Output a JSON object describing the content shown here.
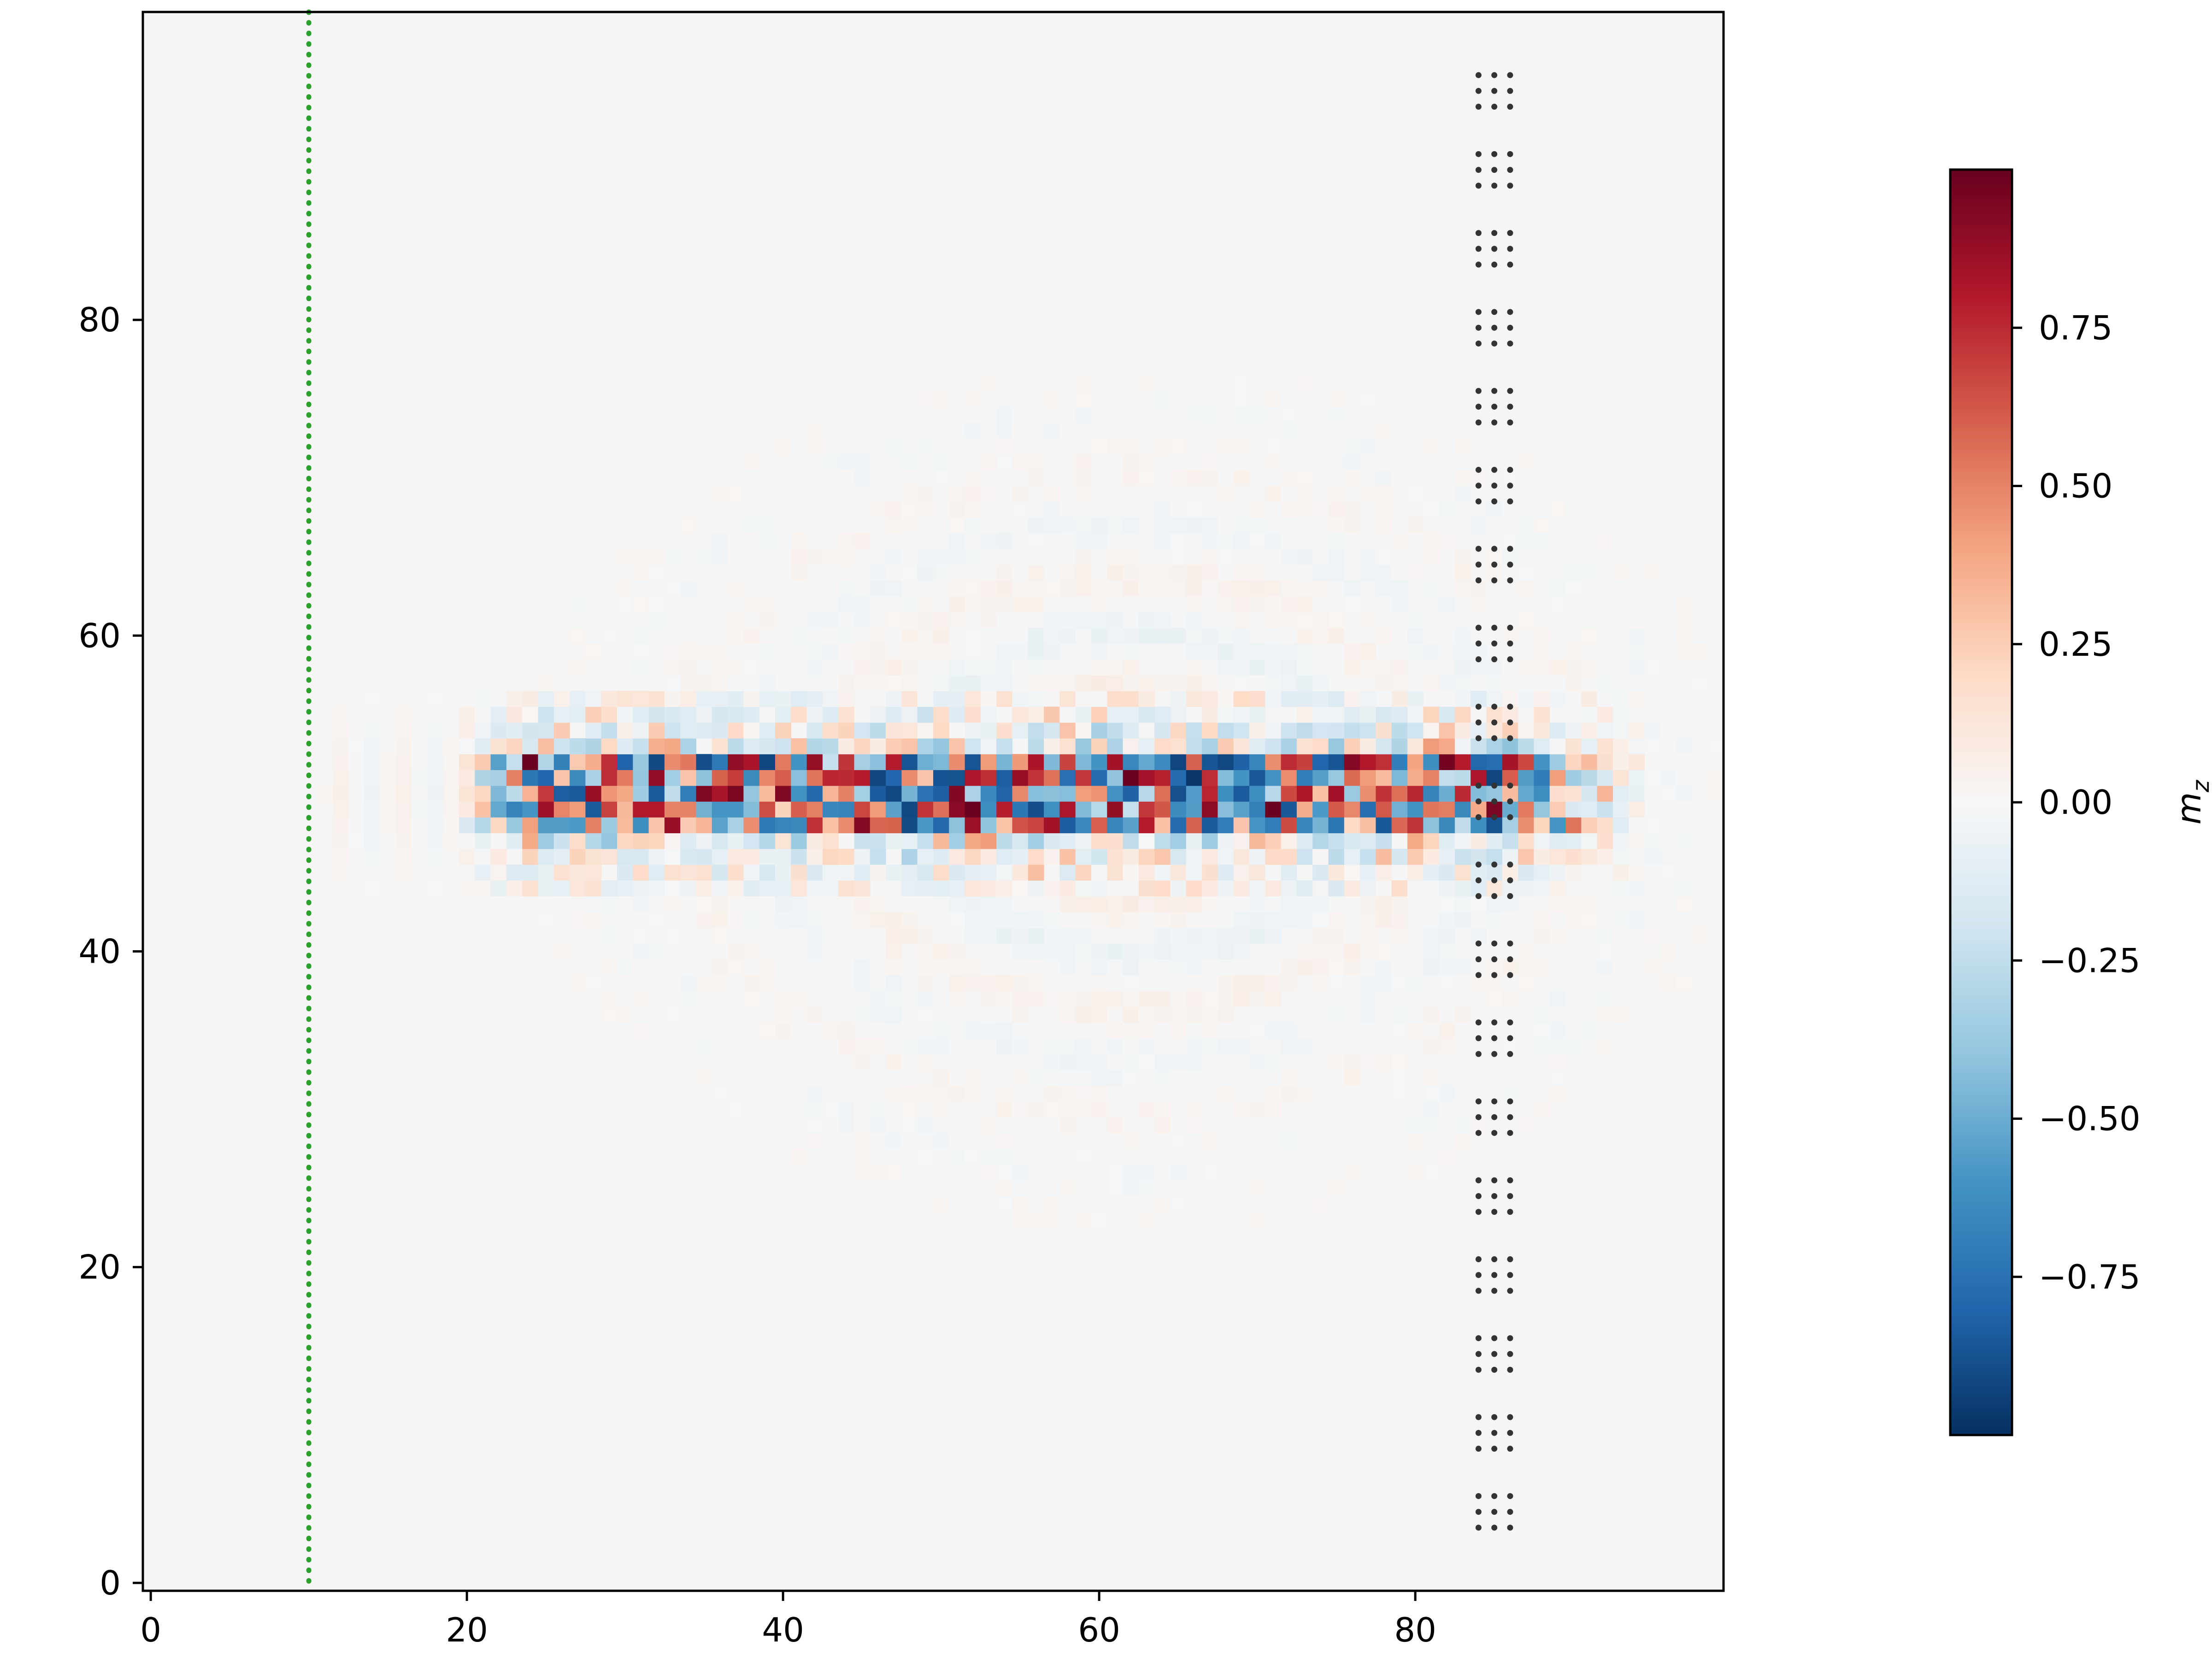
{
  "chart_data": {
    "type": "heatmap",
    "title": "",
    "xlabel": "",
    "ylabel": "",
    "grid": false,
    "colormap": "RdBu_r",
    "background_color": "#f5f5f5",
    "xlim": [
      -0.5,
      99.5
    ],
    "ylim": [
      -0.5,
      99.5
    ],
    "x_ticks": [
      {
        "value": 0,
        "label": "0"
      },
      {
        "value": 20,
        "label": "20"
      },
      {
        "value": 40,
        "label": "40"
      },
      {
        "value": 60,
        "label": "60"
      },
      {
        "value": 80,
        "label": "80"
      }
    ],
    "y_ticks": [
      {
        "value": 0,
        "label": "0"
      },
      {
        "value": 20,
        "label": "20"
      },
      {
        "value": 40,
        "label": "40"
      },
      {
        "value": 60,
        "label": "60"
      },
      {
        "value": 80,
        "label": "80"
      }
    ],
    "colorbar": {
      "label": "m_z",
      "label_main": "m",
      "label_sub": "z",
      "range": [
        -1.0,
        1.0
      ],
      "ticks": [
        {
          "value": 0.75,
          "label": "0.75"
        },
        {
          "value": 0.5,
          "label": "0.50"
        },
        {
          "value": 0.25,
          "label": "0.25"
        },
        {
          "value": 0.0,
          "label": "0.00"
        },
        {
          "value": -0.25,
          "label": "−0.25"
        },
        {
          "value": -0.5,
          "label": "−0.50"
        },
        {
          "value": -0.75,
          "label": "−0.75"
        }
      ]
    },
    "source_line": {
      "x": 10,
      "y_range": [
        0,
        99.5
      ],
      "color": "#2ca02c",
      "style": "dotted"
    },
    "probe_dots": {
      "x": [
        84,
        85,
        86
      ],
      "y_groups": [
        [
          3.5,
          4.5,
          5.5
        ],
        [
          8.5,
          9.5,
          10.5
        ],
        [
          13.5,
          14.5,
          15.5
        ],
        [
          18.5,
          19.5,
          20.5
        ],
        [
          23.5,
          24.5,
          25.5
        ],
        [
          28.5,
          29.5,
          30.5
        ],
        [
          33.5,
          34.5,
          35.5
        ],
        [
          38.5,
          39.5,
          40.5
        ],
        [
          43.5,
          44.5,
          45.5
        ],
        [
          48.5,
          49.5,
          50.5
        ],
        [
          53.5,
          54.5,
          55.5
        ],
        [
          58.5,
          59.5,
          60.5
        ],
        [
          63.5,
          64.5,
          65.5
        ],
        [
          68.5,
          69.5,
          70.5
        ],
        [
          73.5,
          74.5,
          75.5
        ],
        [
          78.5,
          79.5,
          80.5
        ],
        [
          83.5,
          84.5,
          85.5
        ],
        [
          88.5,
          89.5,
          90.5
        ],
        [
          93.5,
          94.5,
          95.5
        ]
      ],
      "color": "#333333"
    },
    "field": {
      "nx": 100,
      "ny": 100,
      "center_y": 50,
      "x_start": 20,
      "x_end": 95,
      "core_halfwidth": 2.5,
      "wing_halfwidth": 6.5,
      "core_amplitude": 0.95,
      "wing_amplitude": 0.45,
      "wave_amplitude": 0.07,
      "wave_center_x": 62,
      "wave_radius_x": 34,
      "wave_radius_y": 24,
      "seed": 7
    }
  }
}
